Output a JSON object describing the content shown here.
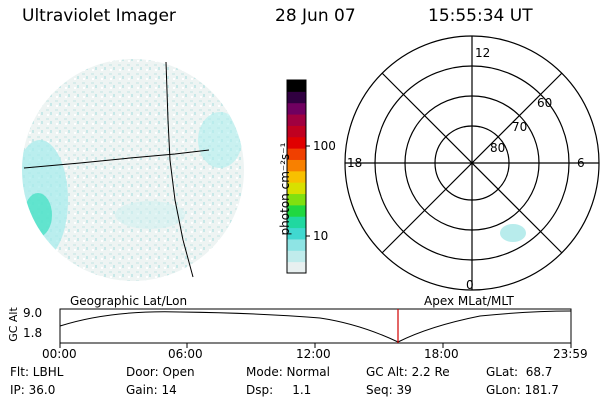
{
  "header": {
    "title": "Ultraviolet Imager",
    "date": "28 Jun 07",
    "time": "15:55:34 UT"
  },
  "colorbar": {
    "unit_label": "photon cm⁻²s⁻¹",
    "ticks": [
      "100",
      "10"
    ],
    "colors": [
      "#e8f0f0",
      "#c0ecec",
      "#8ee4e4",
      "#40d8d0",
      "#20d8a0",
      "#20d840",
      "#80e010",
      "#d8e000",
      "#f8c000",
      "#f88000",
      "#f04000",
      "#e00000",
      "#c00020",
      "#a00040",
      "#700060",
      "#300040",
      "#000000"
    ]
  },
  "polar": {
    "lat_labels": [
      "60",
      "70",
      "80"
    ],
    "mlt_labels": {
      "top": "12",
      "left": "18",
      "right": "6",
      "bottom": "0"
    }
  },
  "timeline": {
    "left_title": "Geographic Lat/Lon",
    "right_title": "Apex MLat/MLT",
    "axis_label": "GC Alt",
    "y_ticks": [
      "9.0",
      "1.8"
    ],
    "x_ticks": [
      "00:00",
      "06:00",
      "12:00",
      "18:00",
      "23:59"
    ],
    "current_time_color": "#d00000"
  },
  "footer": {
    "filter": "Flt: LBHL",
    "ip": "IP: 36.0",
    "door": "Door: Open",
    "gain": "Gain: 14",
    "mode": "Mode: Normal",
    "dsp": "Dsp:     1.1",
    "gc_alt": "GC Alt: 2.2 Re",
    "seq": "Seq: 39",
    "glat": "GLat:  68.7",
    "glon": "GLon: 181.7"
  }
}
